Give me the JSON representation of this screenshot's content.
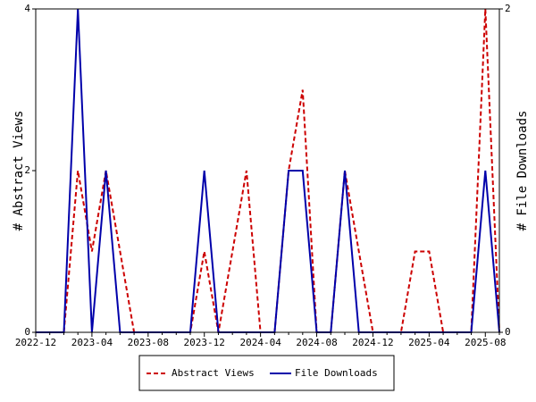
{
  "chart_data": {
    "type": "line",
    "x": [
      "2022-12",
      "2023-01",
      "2023-02",
      "2023-03",
      "2023-04",
      "2023-05",
      "2023-06",
      "2023-07",
      "2023-08",
      "2023-09",
      "2023-10",
      "2023-11",
      "2023-12",
      "2024-01",
      "2024-02",
      "2024-03",
      "2024-04",
      "2024-05",
      "2024-06",
      "2024-07",
      "2024-08",
      "2024-09",
      "2024-10",
      "2024-11",
      "2024-12",
      "2025-01",
      "2025-02",
      "2025-03",
      "2025-04",
      "2025-05",
      "2025-06",
      "2025-07",
      "2025-08",
      "2025-09"
    ],
    "x_ticks": [
      "2022-12",
      "2023-04",
      "2023-08",
      "2023-12",
      "2024-04",
      "2024-08",
      "2024-12",
      "2025-04",
      "2025-08"
    ],
    "series": [
      {
        "name": "Abstract Views",
        "axis": "left",
        "color": "#cc0000",
        "style": "dashed",
        "values": [
          0,
          0,
          0,
          2,
          1,
          2,
          1,
          0,
          0,
          0,
          0,
          0,
          1,
          0,
          1,
          2,
          0,
          0,
          2,
          3,
          0,
          0,
          2,
          1,
          0,
          0,
          0,
          1,
          1,
          0,
          0,
          0,
          4,
          0
        ]
      },
      {
        "name": "File Downloads",
        "axis": "right",
        "color": "#0000aa",
        "style": "solid",
        "values": [
          0,
          0,
          0,
          2,
          0,
          1,
          0,
          0,
          0,
          0,
          0,
          0,
          1,
          0,
          0,
          0,
          0,
          0,
          1,
          1,
          0,
          0,
          1,
          0,
          0,
          0,
          0,
          0,
          0,
          0,
          0,
          0,
          1,
          0
        ]
      }
    ],
    "y_left": {
      "label": "# Abstract Views",
      "ylim": [
        0,
        4
      ],
      "ticks": [
        0,
        2,
        4
      ]
    },
    "y_right": {
      "label": "# File Downloads",
      "ylim": [
        0,
        2
      ],
      "ticks": [
        0,
        2
      ]
    },
    "grid": false,
    "legend": "bottom-center"
  }
}
